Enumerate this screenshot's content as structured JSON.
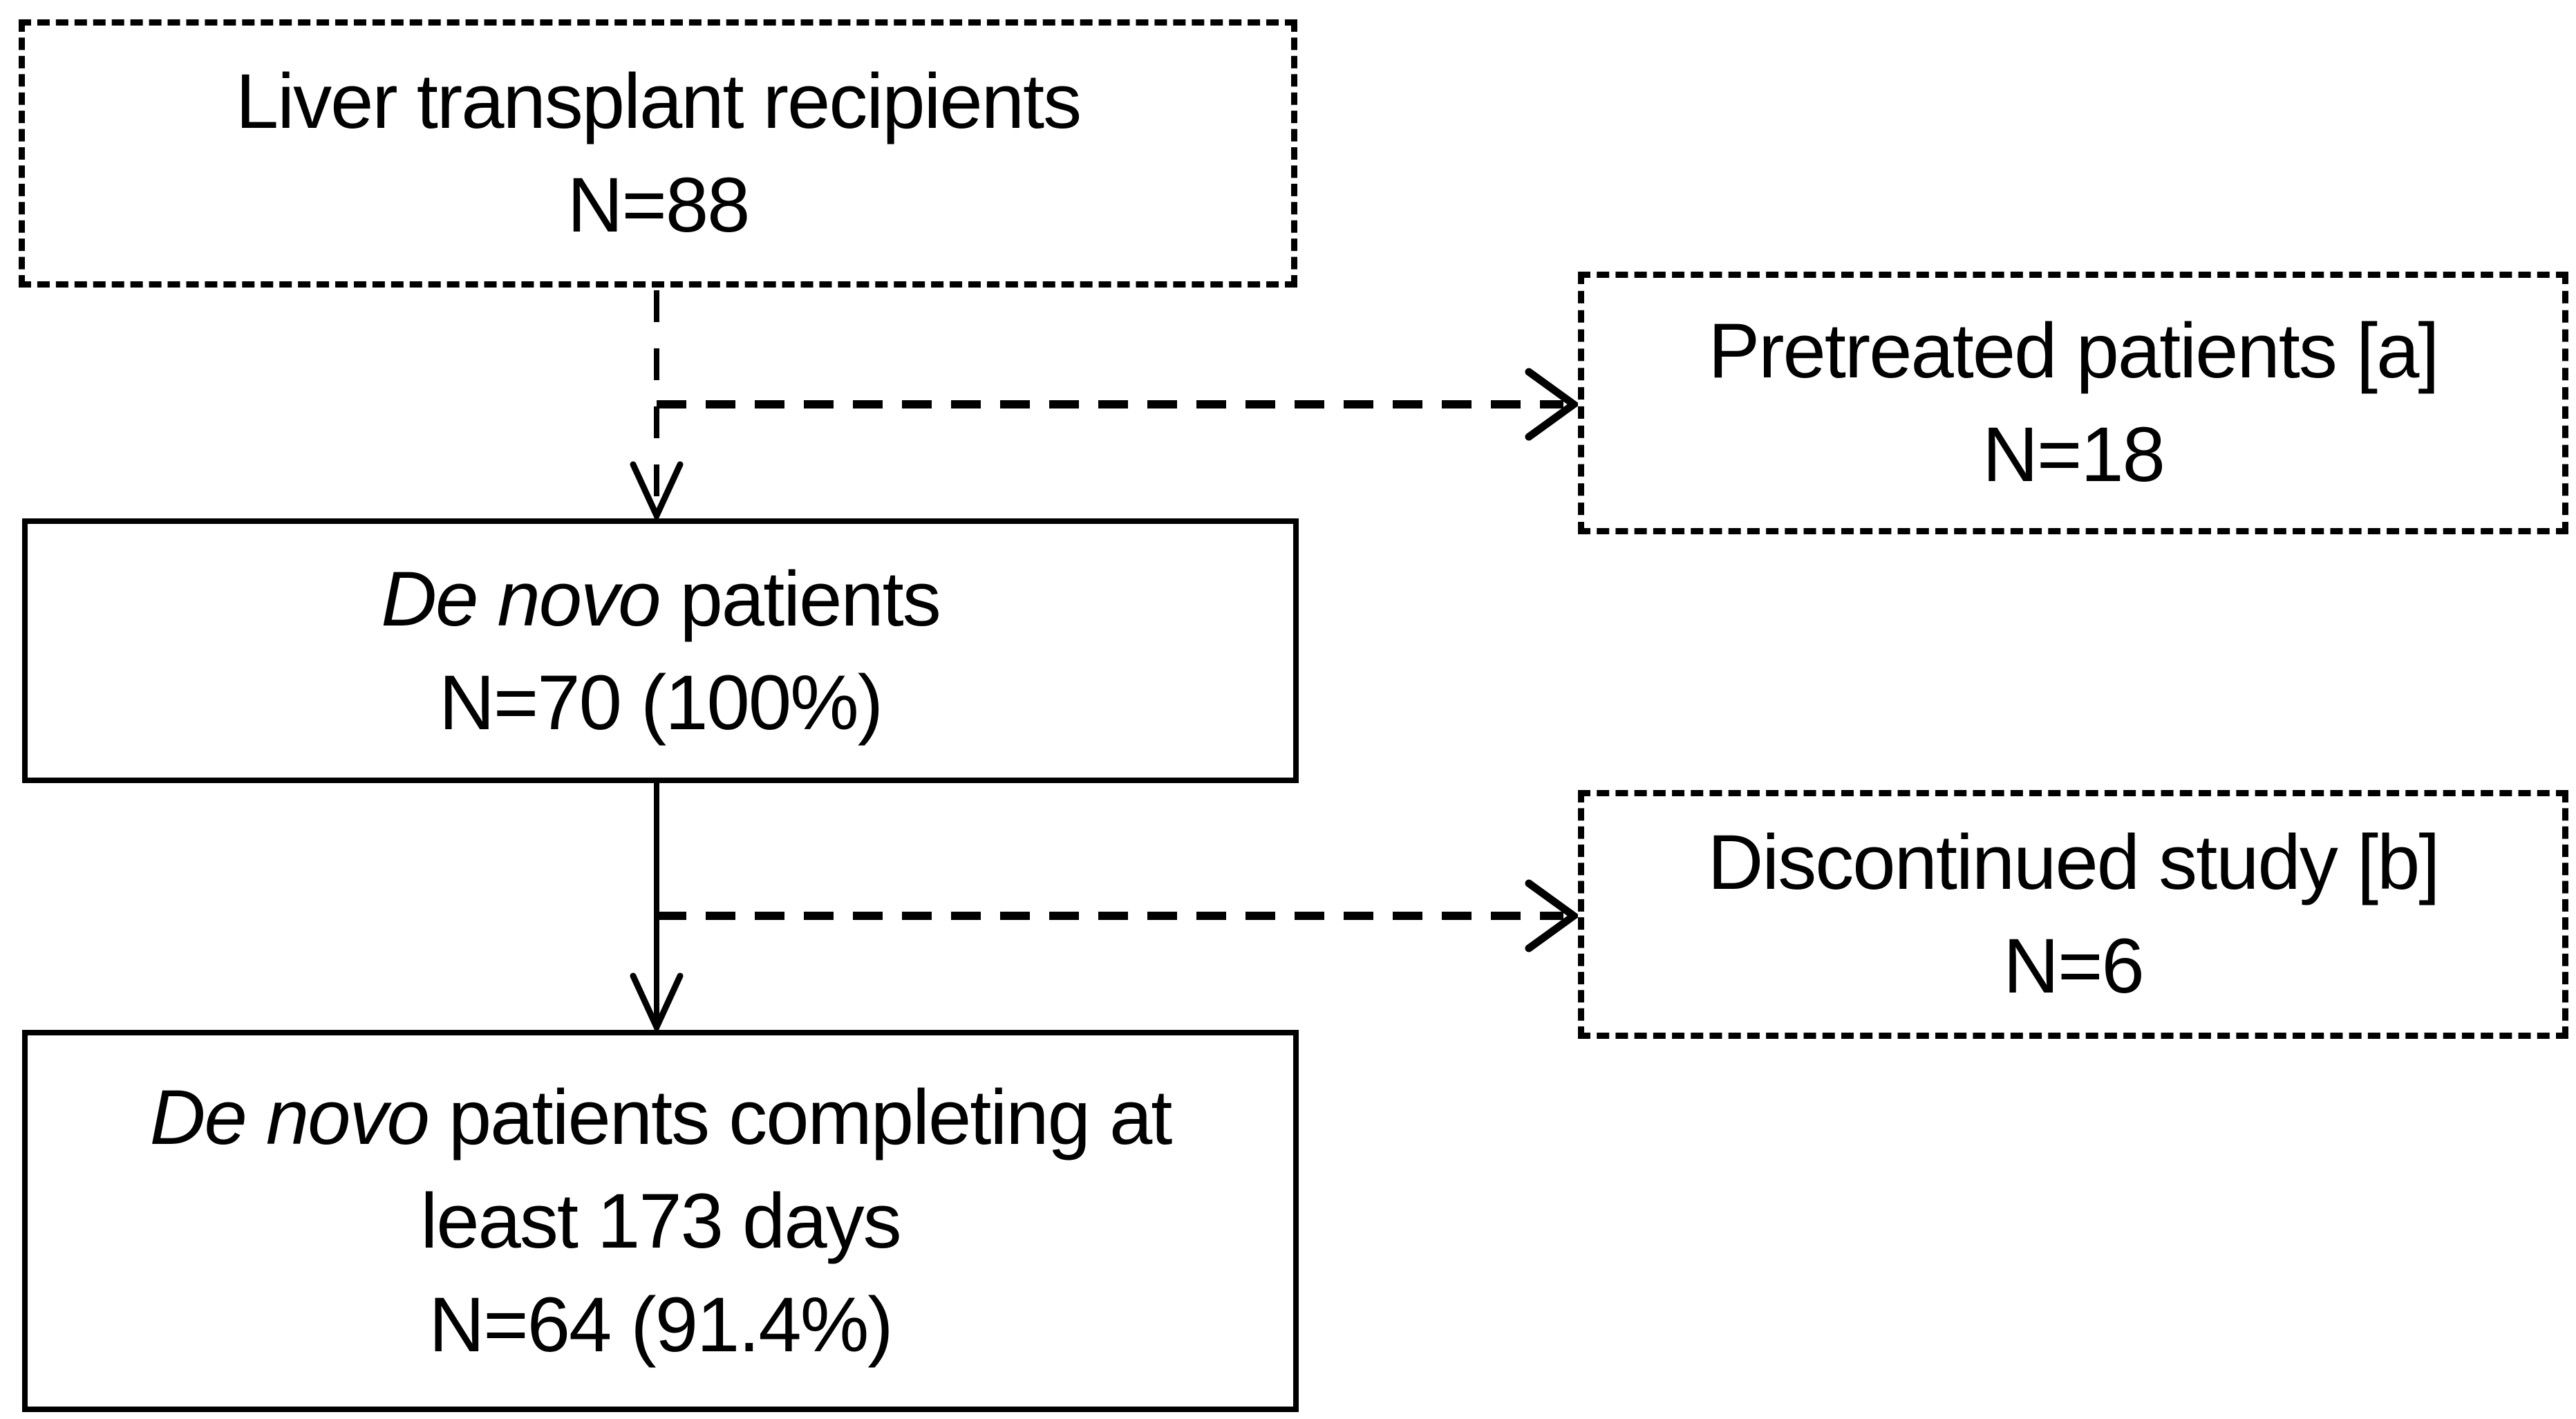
{
  "figure": {
    "background_color": "#ffffff",
    "line_color": "#000000",
    "text_color": "#000000"
  },
  "diagram": {
    "type": "flowchart",
    "boxes": [
      {
        "id": "recipients",
        "name": "liver-transplant-recipients",
        "border": "dashed",
        "lines": [
          [
            {
              "t": "Liver transplant recipients"
            }
          ],
          [
            {
              "t": "N=88"
            }
          ]
        ]
      },
      {
        "id": "pretreated",
        "name": "pretreated-patients",
        "border": "dashed",
        "lines": [
          [
            {
              "t": "Pretreated patients [a]"
            }
          ],
          [
            {
              "t": "N=18"
            }
          ]
        ]
      },
      {
        "id": "denovo",
        "name": "de-novo-patients",
        "border": "solid",
        "lines": [
          [
            {
              "t": "De novo",
              "i": true
            },
            {
              "t": " patients"
            }
          ],
          [
            {
              "t": "N=70 (100%)"
            }
          ]
        ]
      },
      {
        "id": "discontinued",
        "name": "discontinued-study",
        "border": "dashed",
        "lines": [
          [
            {
              "t": "Discontinued study [b]"
            }
          ],
          [
            {
              "t": "N=6"
            }
          ]
        ]
      },
      {
        "id": "completing",
        "name": "de-novo-patients-completing",
        "border": "solid",
        "lines": [
          [
            {
              "t": "De novo",
              "i": true
            },
            {
              "t": " patients completing at"
            }
          ],
          [
            {
              "t": "least 173 days"
            }
          ],
          [
            {
              "t": "N=64 (91.4%)"
            }
          ]
        ]
      }
    ],
    "connectors": [
      {
        "from": "recipients",
        "to": "denovo",
        "style": "dashed",
        "direction": "down"
      },
      {
        "from": "recipients",
        "to": "pretreated",
        "style": "dashed",
        "direction": "right"
      },
      {
        "from": "denovo",
        "to": "completing",
        "style": "solid",
        "direction": "down"
      },
      {
        "from": "denovo",
        "to": "discontinued",
        "style": "dashed",
        "direction": "right"
      }
    ]
  }
}
